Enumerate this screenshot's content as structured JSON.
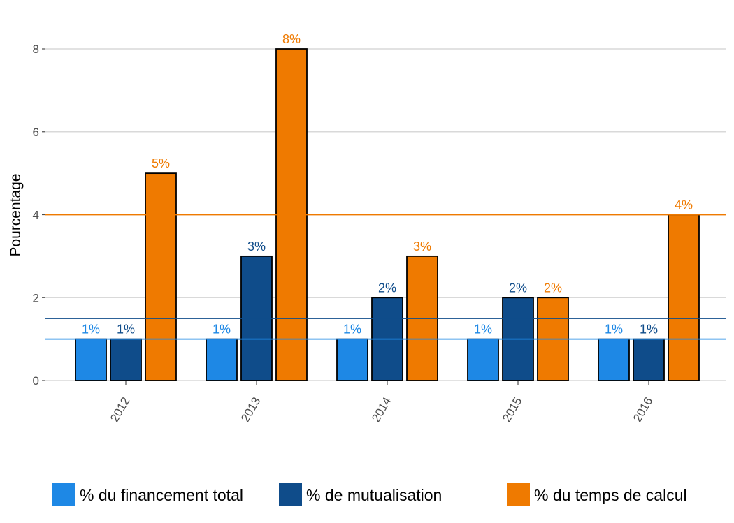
{
  "chart_data": {
    "type": "bar",
    "title": "",
    "xlabel": "",
    "ylabel": "Pourcentage",
    "ylim": [
      0,
      8.4
    ],
    "yticks": [
      0,
      2,
      4,
      6,
      8
    ],
    "grid": true,
    "legend_position": "bottom",
    "categories": [
      "2012",
      "2013",
      "2014",
      "2015",
      "2016"
    ],
    "series": [
      {
        "name": "% du financement total",
        "values": [
          1,
          1,
          1,
          1,
          1
        ],
        "labels": [
          "1%",
          "1%",
          "1%",
          "1%",
          "1%"
        ],
        "color": "#1e88e5"
      },
      {
        "name": "% de mutualisation",
        "values": [
          1,
          3,
          2,
          2,
          1
        ],
        "labels": [
          "1%",
          "3%",
          "2%",
          "2%",
          "1%"
        ],
        "color": "#0f4c8a"
      },
      {
        "name": "% du temps de calcul",
        "values": [
          5,
          8,
          3,
          2,
          4
        ],
        "labels": [
          "5%",
          "8%",
          "3%",
          "2%",
          "4%"
        ],
        "color": "#ef7a00"
      }
    ],
    "reference_lines": [
      {
        "value": 1,
        "color": "#1e88e5"
      },
      {
        "value": 1.5,
        "color": "#0f4c8a"
      },
      {
        "value": 4,
        "color": "#ef7a00"
      }
    ]
  }
}
